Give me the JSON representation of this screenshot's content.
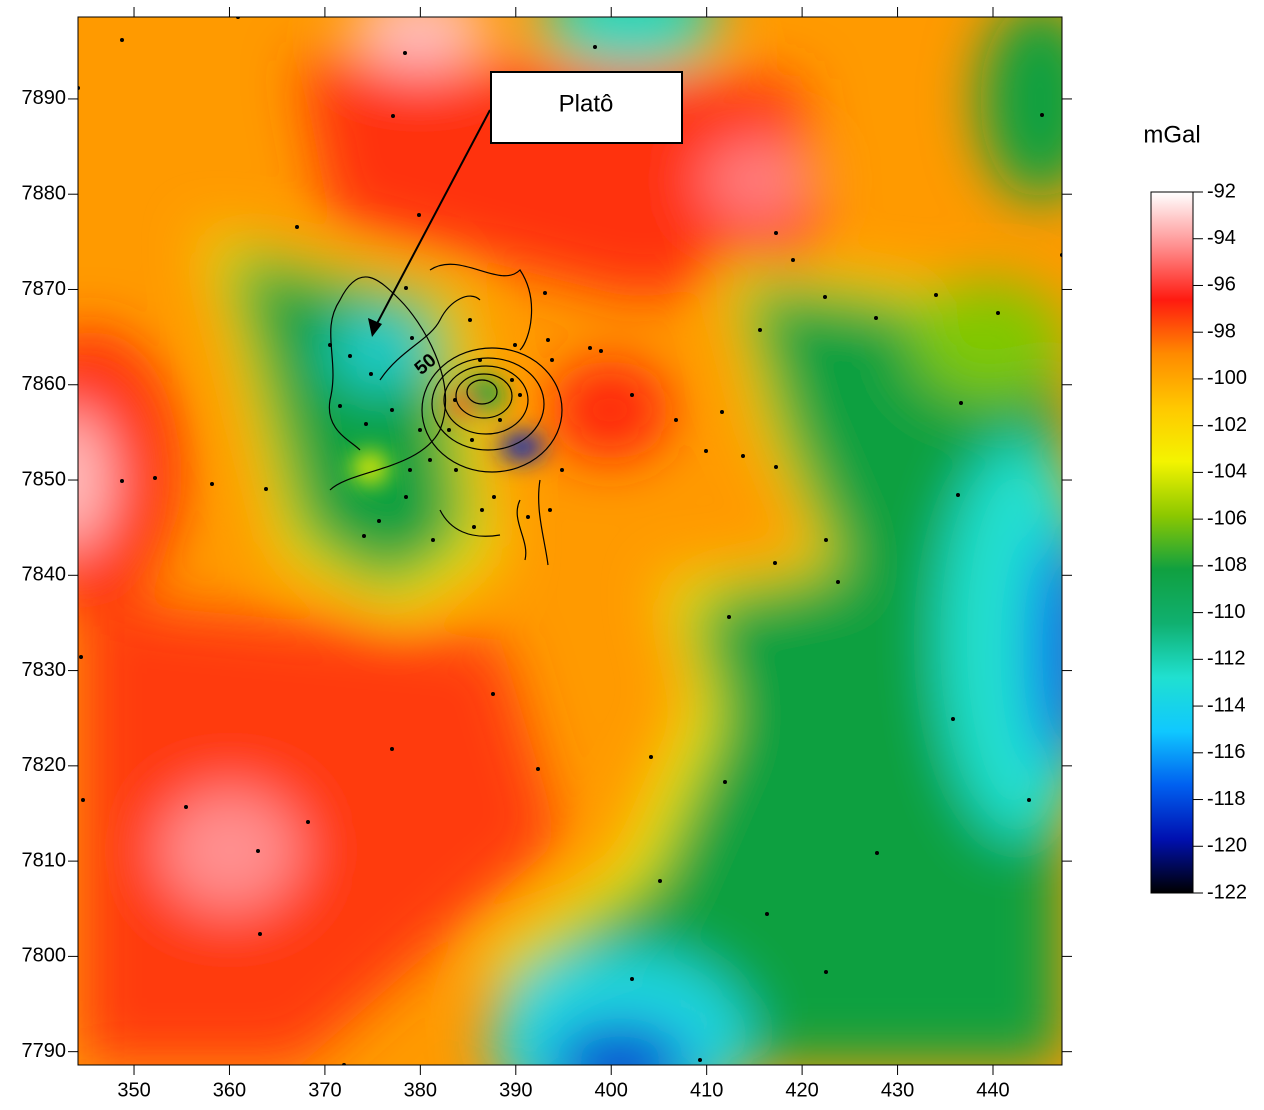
{
  "map": {
    "xlim": [
      344.13,
      447.23
    ],
    "ylim": [
      7788.6,
      7898.6
    ],
    "xticks": [
      350,
      360,
      370,
      380,
      390,
      400,
      410,
      420,
      430,
      440
    ],
    "yticks": [
      7790,
      7800,
      7810,
      7820,
      7830,
      7840,
      7850,
      7860,
      7870,
      7880,
      7890
    ],
    "callout": "Platô",
    "contour_label": "50"
  },
  "colorbar": {
    "title": "mGal",
    "lim": [
      -92,
      -122
    ],
    "ticks": [
      -92,
      -94,
      -96,
      -98,
      -100,
      -102,
      -104,
      -106,
      -108,
      -110,
      -112,
      -114,
      -116,
      -118,
      -120,
      -122
    ],
    "colors": [
      "#ffffff",
      "#ff9090",
      "#ff1a10",
      "#ff8a00",
      "#ffc800",
      "#f4f400",
      "#8cc800",
      "#10a040",
      "#10b070",
      "#20e0d0",
      "#10c8ff",
      "#0060f0",
      "#0010b0",
      "#000000"
    ]
  }
}
